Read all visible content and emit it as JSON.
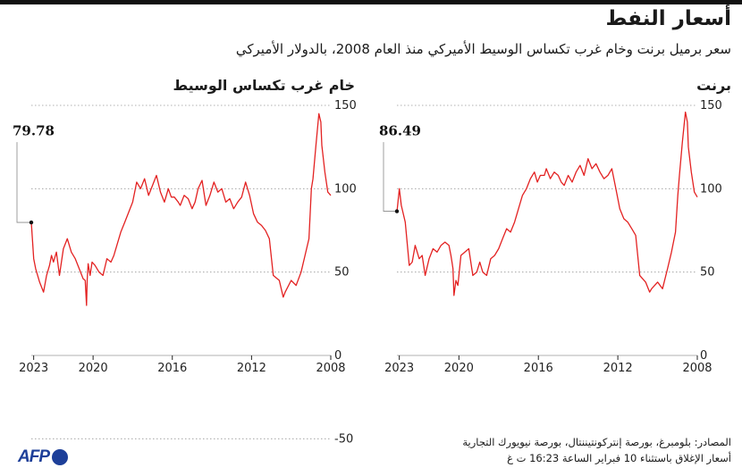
{
  "header": {
    "title": "أسعار النفط",
    "subtitle": "سعر برميل برنت وخام غرب تكساس الوسيط الأميركي منذ العام 2008، بالدولار الأميركي"
  },
  "sources": {
    "line1": "المصادر: بلومبرغ، بورصة إنتركونتيننتال، بورصة نيويورك التجارية",
    "line2": "أسعار الإغلاق باستثناء 10 فبراير الساعة 16:23 ت غ"
  },
  "logo": {
    "text": "AFP"
  },
  "colors": {
    "line": "#e32222",
    "grid": "#999999",
    "text": "#222222"
  },
  "chart_data": [
    {
      "type": "line",
      "title": "خام غرب تكساس الوسيط",
      "ylim": [
        -50,
        150
      ],
      "yticks": [
        -50,
        0,
        50,
        100,
        150
      ],
      "xlim": [
        2008,
        2023.12
      ],
      "x_reversed": true,
      "xticks": [
        2008,
        2012,
        2016,
        2020,
        2023
      ],
      "grid": true,
      "last_value_label": "79.78",
      "last_value": 79.78,
      "series": [
        {
          "x": [
            2008.0,
            2008.15,
            2008.3,
            2008.45,
            2008.5,
            2008.6,
            2008.75,
            2008.9,
            2008.98,
            2009.1,
            2009.3,
            2009.5,
            2009.75,
            2010.0,
            2010.3,
            2010.4,
            2010.6,
            2010.9,
            2011.1,
            2011.3,
            2011.5,
            2011.7,
            2011.9,
            2012.1,
            2012.3,
            2012.5,
            2012.7,
            2012.9,
            2013.1,
            2013.3,
            2013.5,
            2013.7,
            2013.9,
            2014.1,
            2014.3,
            2014.5,
            2014.7,
            2014.85,
            2015.0,
            2015.2,
            2015.4,
            2015.6,
            2015.7,
            2015.9,
            2016.05,
            2016.2,
            2016.4,
            2016.6,
            2016.8,
            2017.0,
            2017.2,
            2017.4,
            2017.6,
            2017.8,
            2018.0,
            2018.2,
            2018.4,
            2018.6,
            2018.8,
            2018.95,
            2019.1,
            2019.3,
            2019.5,
            2019.7,
            2019.9,
            2020.05,
            2020.15,
            2020.25,
            2020.3,
            2020.33,
            2020.4,
            2020.5,
            2020.7,
            2020.9,
            2021.1,
            2021.3,
            2021.5,
            2021.7,
            2021.85,
            2022.0,
            2022.1,
            2022.2,
            2022.35,
            2022.5,
            2022.7,
            2022.9,
            2023.0,
            2023.12
          ],
          "y": [
            96,
            98,
            110,
            126,
            140,
            145,
            126,
            106,
            100,
            70,
            60,
            50,
            42,
            45,
            38,
            35,
            45,
            48,
            70,
            75,
            78,
            80,
            85,
            96,
            104,
            95,
            92,
            88,
            94,
            92,
            100,
            98,
            104,
            96,
            90,
            105,
            100,
            92,
            88,
            94,
            96,
            90,
            92,
            95,
            95,
            100,
            92,
            98,
            108,
            102,
            96,
            106,
            100,
            104,
            92,
            86,
            80,
            74,
            66,
            60,
            56,
            58,
            48,
            50,
            54,
            56,
            48,
            55,
            45,
            30,
            45,
            46,
            52,
            58,
            62,
            70,
            64,
            48,
            62,
            56,
            60,
            54,
            48,
            38,
            44,
            52,
            58,
            80
          ]
        }
      ]
    },
    {
      "type": "line",
      "title": "برنت",
      "ylim": [
        0,
        150
      ],
      "yticks": [
        0,
        50,
        100,
        150
      ],
      "xlim": [
        2008,
        2023.12
      ],
      "x_reversed": true,
      "xticks": [
        2008,
        2012,
        2016,
        2020,
        2023
      ],
      "grid": true,
      "last_value_label": "86.49",
      "last_value": 86.49,
      "series": [
        {
          "x": [
            2008.0,
            2008.15,
            2008.3,
            2008.45,
            2008.5,
            2008.6,
            2008.75,
            2008.9,
            2008.98,
            2009.1,
            2009.3,
            2009.5,
            2009.75,
            2010.0,
            2010.3,
            2010.4,
            2010.6,
            2010.9,
            2011.1,
            2011.3,
            2011.5,
            2011.7,
            2011.9,
            2012.1,
            2012.3,
            2012.5,
            2012.7,
            2012.9,
            2013.1,
            2013.3,
            2013.5,
            2013.7,
            2013.9,
            2014.1,
            2014.3,
            2014.5,
            2014.7,
            2014.85,
            2015.0,
            2015.2,
            2015.4,
            2015.6,
            2015.7,
            2015.9,
            2016.05,
            2016.2,
            2016.4,
            2016.6,
            2016.8,
            2017.0,
            2017.2,
            2017.4,
            2017.6,
            2017.8,
            2018.0,
            2018.2,
            2018.4,
            2018.6,
            2018.8,
            2018.95,
            2019.1,
            2019.3,
            2019.5,
            2019.7,
            2019.9,
            2020.05,
            2020.15,
            2020.25,
            2020.3,
            2020.35,
            2020.4,
            2020.5,
            2020.7,
            2020.9,
            2021.1,
            2021.3,
            2021.5,
            2021.7,
            2021.85,
            2022.0,
            2022.1,
            2022.2,
            2022.35,
            2022.5,
            2022.7,
            2022.9,
            2023.0,
            2023.12
          ],
          "y": [
            95,
            98,
            110,
            125,
            140,
            146,
            128,
            108,
            96,
            74,
            62,
            52,
            40,
            44,
            40,
            38,
            44,
            48,
            72,
            76,
            80,
            82,
            88,
            100,
            112,
            108,
            106,
            110,
            115,
            112,
            118,
            108,
            114,
            110,
            104,
            108,
            102,
            104,
            108,
            110,
            106,
            112,
            108,
            108,
            104,
            110,
            106,
            100,
            96,
            88,
            80,
            74,
            76,
            70,
            64,
            60,
            58,
            48,
            50,
            56,
            50,
            48,
            64,
            62,
            60,
            42,
            45,
            36,
            52,
            56,
            60,
            66,
            68,
            66,
            62,
            64,
            58,
            48,
            60,
            58,
            62,
            66,
            56,
            54,
            80,
            90,
            100,
            86
          ]
        }
      ]
    }
  ]
}
